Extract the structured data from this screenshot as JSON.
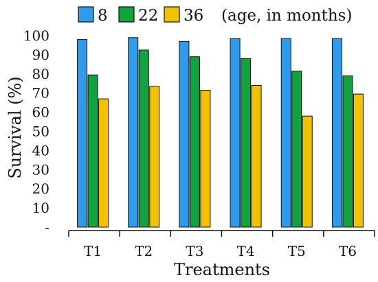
{
  "chart_data": {
    "type": "bar",
    "title": "",
    "xlabel": "Treatments",
    "ylabel": "Survival (%)",
    "ylim": [
      0,
      100
    ],
    "yticks": [
      10,
      20,
      30,
      40,
      50,
      60,
      70,
      80,
      90,
      100
    ],
    "categories": [
      "T1",
      "T2",
      "T3",
      "T4",
      "T5",
      "T6"
    ],
    "legend_note": "(age, in months)",
    "legend_placement": "top",
    "grid": false,
    "series": [
      {
        "name": "8",
        "color": "#2f9bea",
        "values": [
          98,
          99,
          97,
          98.5,
          98.5,
          98.5
        ]
      },
      {
        "name": "22",
        "color": "#12a33f",
        "values": [
          79.5,
          92.5,
          89,
          88,
          81.5,
          79
        ]
      },
      {
        "name": "36",
        "color": "#f2c200",
        "values": [
          67,
          73.5,
          71.5,
          74,
          58,
          69.5
        ]
      }
    ]
  }
}
